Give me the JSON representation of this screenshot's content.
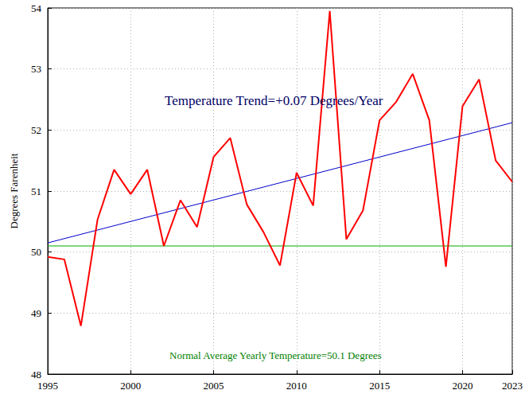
{
  "chart_data": {
    "type": "line",
    "ylabel": "Degrees Farenheit",
    "xlim": [
      1995,
      2023
    ],
    "xticks": [
      1995,
      2000,
      2005,
      2010,
      2015,
      2020
    ],
    "ylim": [
      48,
      54
    ],
    "yticks": [
      48,
      49,
      50,
      51,
      52,
      53,
      54
    ],
    "grid": true,
    "series": [
      {
        "x": [
          1995,
          1996,
          1997,
          1998,
          1999,
          2000,
          2001,
          2002,
          2003,
          2004,
          2005,
          2006,
          2007,
          2008,
          2009,
          2010,
          2011,
          2012,
          2013,
          2014,
          2015,
          2016,
          2017,
          2018,
          2019,
          2020,
          2021,
          2022,
          2023
        ],
        "values": [
          49.92,
          49.88,
          48.79,
          50.53,
          51.35,
          50.95,
          51.35,
          50.1,
          50.85,
          50.41,
          51.56,
          51.87,
          50.78,
          50.33,
          49.78,
          51.3,
          50.76,
          53.95,
          50.21,
          50.68,
          52.16,
          52.46,
          52.92,
          52.16,
          49.76,
          52.39,
          52.83,
          51.5,
          51.15
        ],
        "color": "#ff0000"
      },
      {
        "x": [
          1995,
          2023
        ],
        "values": [
          50.15,
          52.12
        ],
        "color": "#0000cc"
      },
      {
        "x": [
          1995,
          2023
        ],
        "values": [
          50.1,
          50.1
        ],
        "color": "#00aa00"
      }
    ],
    "annotations": [
      {
        "text": "Temperature Trend=+0.07 Degrees/Year",
        "color": "#000066"
      },
      {
        "text": "Normal Average Yearly Temperature=50.1 Degrees",
        "color": "#008000"
      }
    ]
  }
}
